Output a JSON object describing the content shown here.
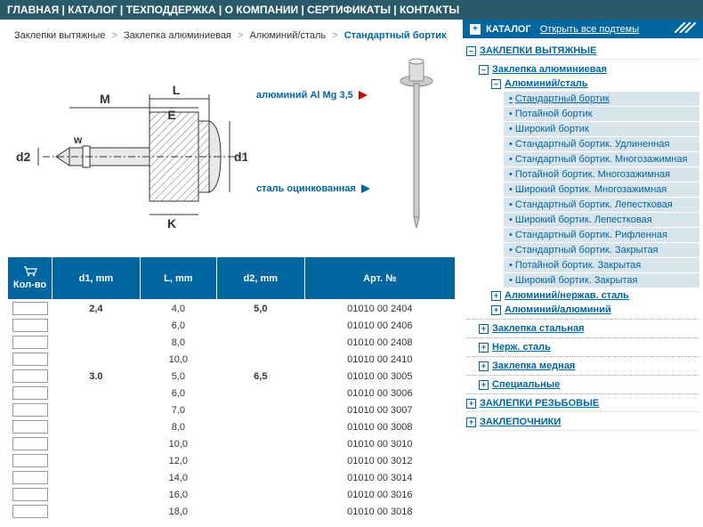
{
  "topnav": [
    "ГЛАВНАЯ",
    "КАТАЛОГ",
    "ТЕХПОДДЕРЖКА",
    "О КОМПАНИИ",
    "СЕРТИФИКАТЫ",
    "КОНТАКТЫ"
  ],
  "breadcrumb": {
    "a": "Заклепки вытяжные",
    "b": "Заклепка алюминиевая",
    "c": "Алюминий/сталь",
    "d": "Стандартный бортик"
  },
  "callouts": {
    "mat1": "алюминий Al Mg 3,5",
    "mat2": "сталь оцинкованная"
  },
  "diagram_labels": {
    "L": "L",
    "M": "M",
    "E": "E",
    "w": "w",
    "d1": "d1",
    "d2": "d2",
    "K": "K"
  },
  "table": {
    "headers": {
      "qty": "Кол-во",
      "d1": "d1, mm",
      "L": "L, mm",
      "d2": "d2, mm",
      "art": "Арт. №"
    },
    "rows": [
      {
        "d1": "2,4",
        "L": "4,0",
        "d2": "5,0",
        "art": "01010 00 2404"
      },
      {
        "d1": "",
        "L": "6,0",
        "d2": "",
        "art": "01010 00 2406"
      },
      {
        "d1": "",
        "L": "8,0",
        "d2": "",
        "art": "01010 00 2408"
      },
      {
        "d1": "",
        "L": "10,0",
        "d2": "",
        "art": "01010 00 2410"
      },
      {
        "d1": "3.0",
        "L": "5,0",
        "d2": "6,5",
        "art": "01010 00 3005"
      },
      {
        "d1": "",
        "L": "6,0",
        "d2": "",
        "art": "01010 00 3006"
      },
      {
        "d1": "",
        "L": "7,0",
        "d2": "",
        "art": "01010 00 3007"
      },
      {
        "d1": "",
        "L": "8,0",
        "d2": "",
        "art": "01010 00 3008"
      },
      {
        "d1": "",
        "L": "10,0",
        "d2": "",
        "art": "01010 00 3010"
      },
      {
        "d1": "",
        "L": "12,0",
        "d2": "",
        "art": "01010 00 3012"
      },
      {
        "d1": "",
        "L": "14,0",
        "d2": "",
        "art": "01010 00 3014"
      },
      {
        "d1": "",
        "L": "16,0",
        "d2": "",
        "art": "01010 00 3016"
      },
      {
        "d1": "",
        "L": "18,0",
        "d2": "",
        "art": "01010 00 3018"
      }
    ]
  },
  "catHeader": {
    "title": "КАТАЛОГ",
    "open": "Открыть все подтемы"
  },
  "tree": {
    "top1": "ЗАКЛЕПКИ ВЫТЯЖНЫЕ",
    "sub1": "Заклепка алюминиевая",
    "sub2": "Алюминий/сталь",
    "leaves": [
      "Стандартный бортик",
      "Потайной бортик",
      "Широкий бортик",
      "Стандартный бортик. Удлиненная",
      "Стандартный бортик. Многозажимная",
      "Потайной бортик. Многозажимная",
      "Широкий бортик. Многозажимная",
      "Стандартный бортик. Лепестковая",
      "Широкий бортик. Лепестковая",
      "Стандартный бортик. Рифленная",
      "Стандартный бортик. Закрытая",
      "Потайной бортик. Закрытая",
      "Широкий бортик. Закрытая"
    ],
    "sub3": "Алюминий/нержав. сталь",
    "sub4": "Алюминий/алюминий",
    "sib": [
      "Заклепка стальная",
      "Нерж. сталь",
      "Заклепка медная",
      "Специальные"
    ],
    "top2": "ЗАКЛЕПКИ РЕЗЬБОВЫЕ",
    "top3": "ЗАКЛЕПОЧНИКИ"
  },
  "colors": {
    "navBg": "#2a5a6a",
    "primary": "#0066a0",
    "leafBg": "#d8e4ec",
    "hatch": "#888"
  }
}
